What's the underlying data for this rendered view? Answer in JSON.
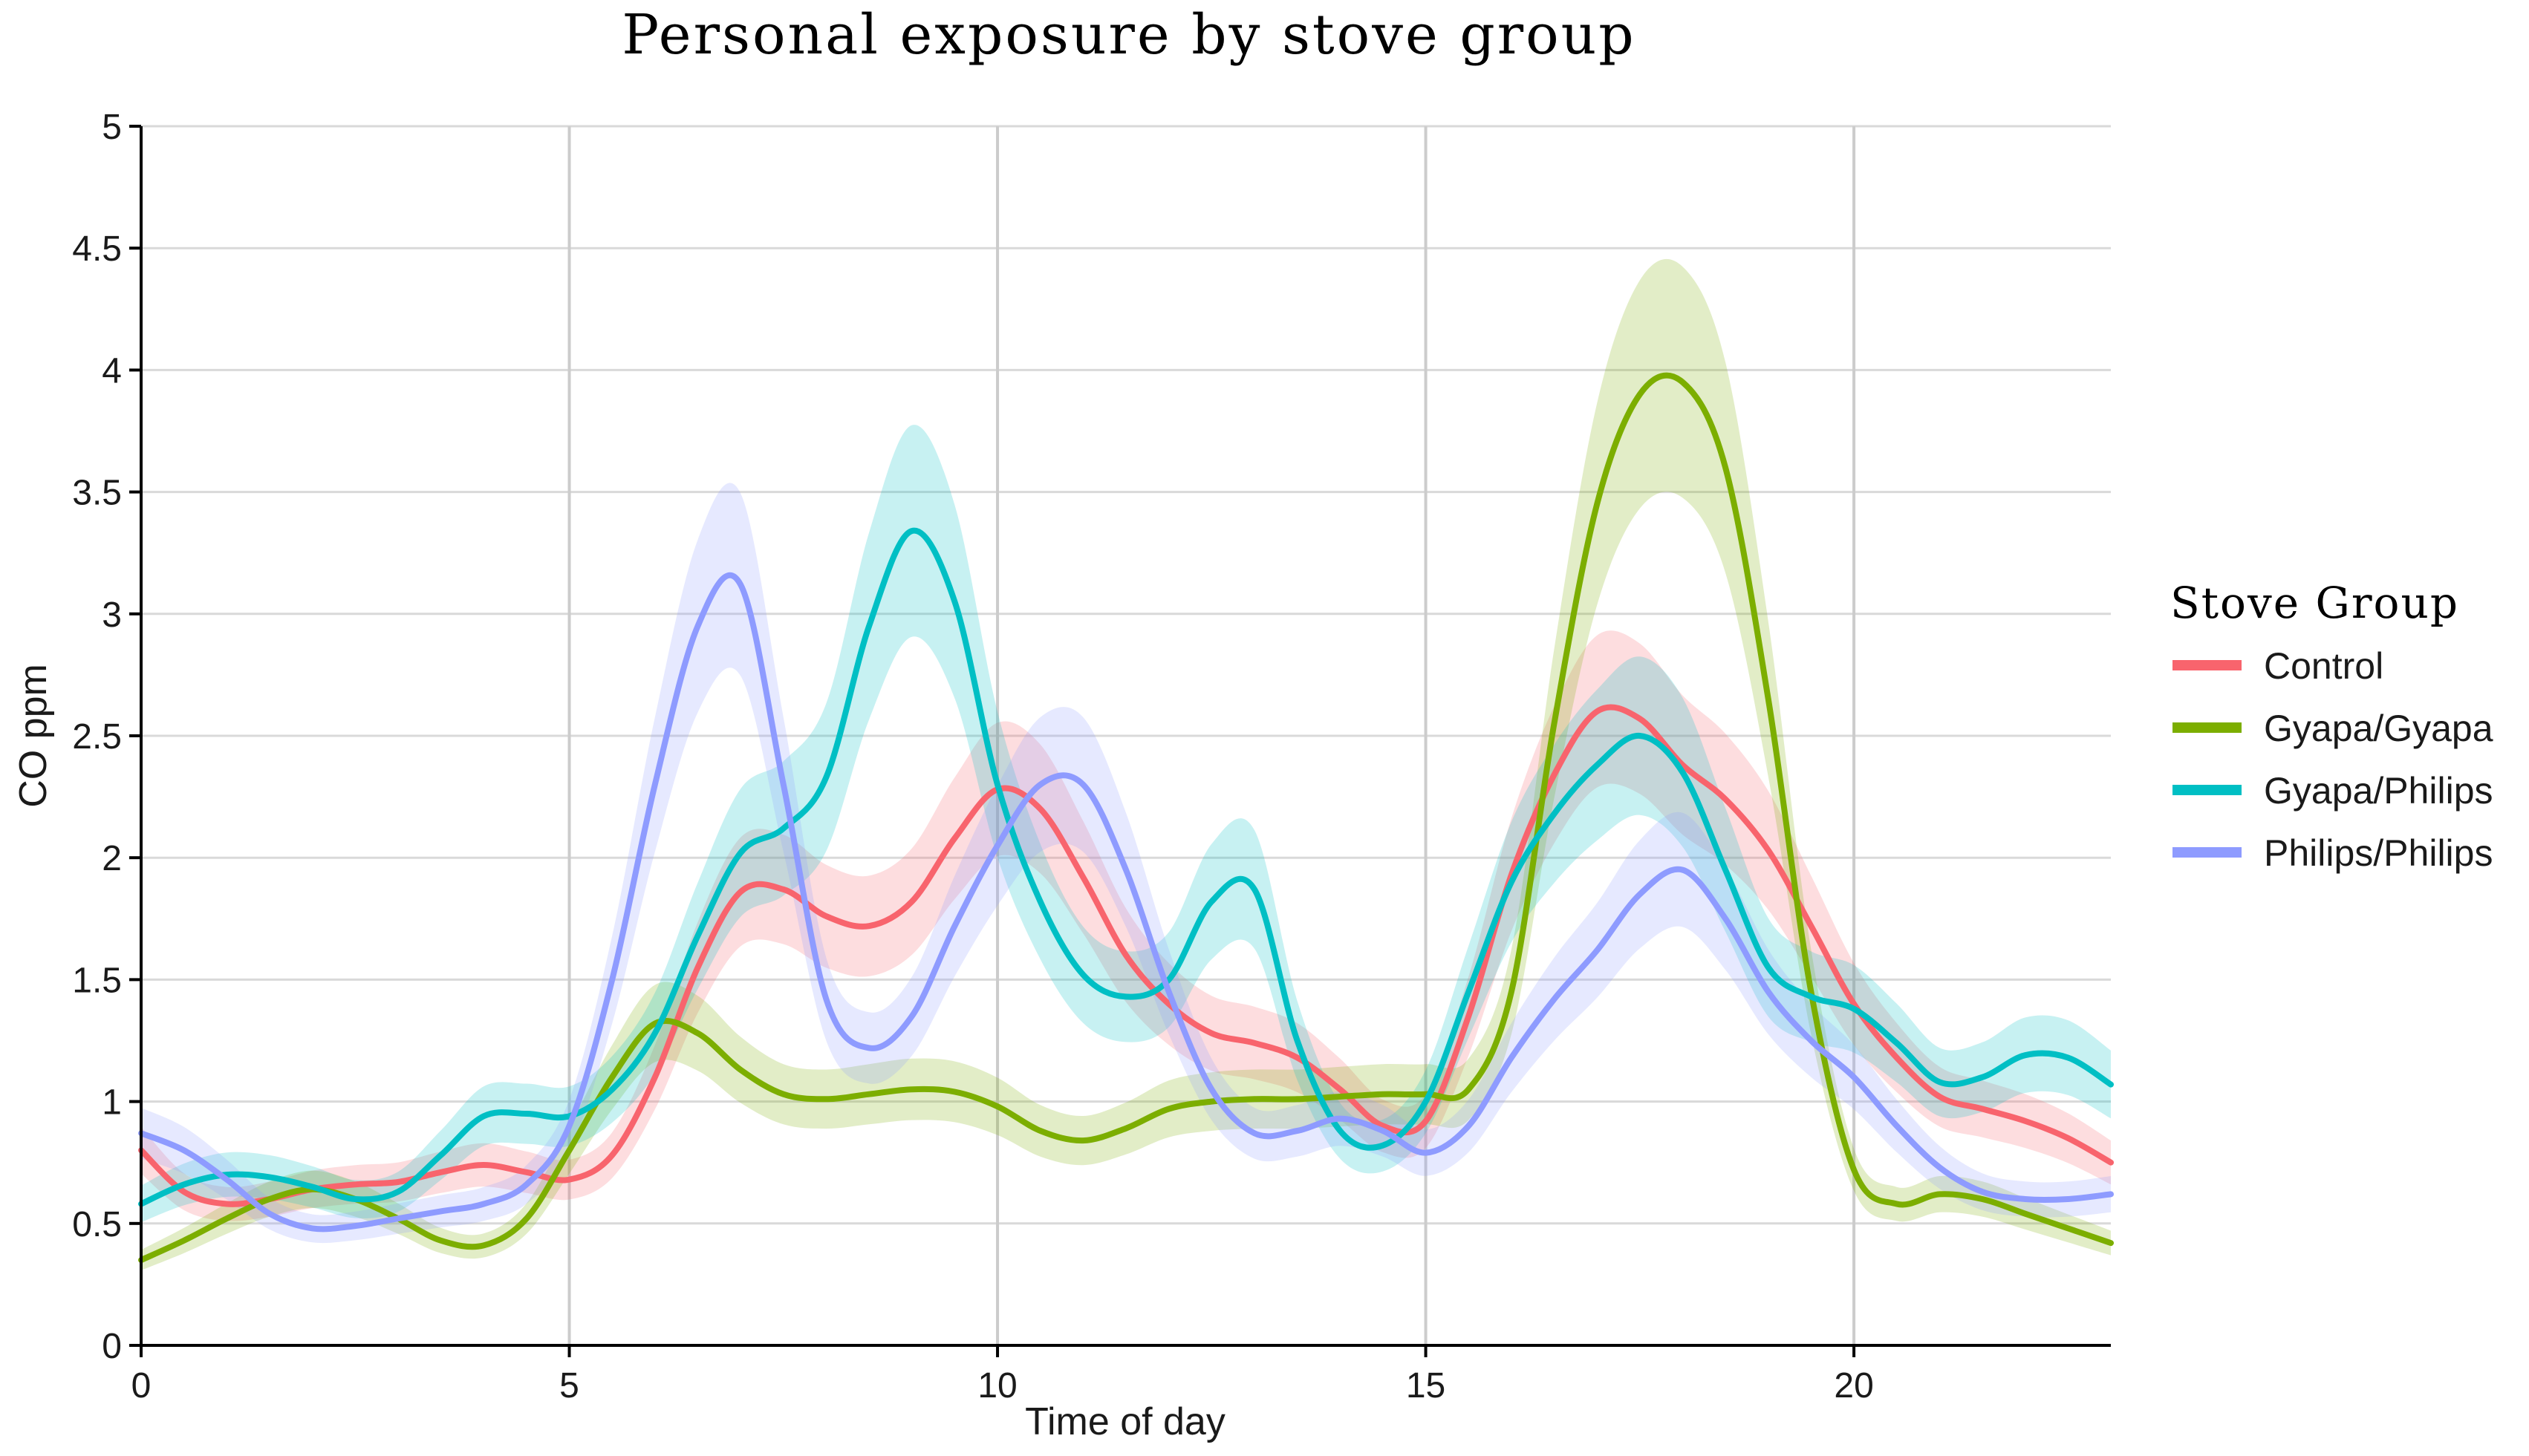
{
  "chart_data": {
    "type": "line",
    "title": "Personal exposure by stove group",
    "xlabel": "Time of day",
    "ylabel": "CO ppm",
    "xlim": [
      0,
      23
    ],
    "ylim": [
      0,
      5
    ],
    "xticks": [
      0,
      5,
      10,
      15,
      20
    ],
    "yticks": [
      0,
      0.5,
      1,
      1.5,
      2,
      2.5,
      3,
      3.5,
      4,
      4.5,
      5
    ],
    "ytick_labels": [
      "0",
      "0.5",
      "1",
      "1.5",
      "2",
      "2.5",
      "3",
      "3.5",
      "4",
      "4.5",
      "5"
    ],
    "grid": true,
    "legend": {
      "title": "Stove Group",
      "placement": "right"
    },
    "series": [
      {
        "name": "Control",
        "color": "#F8646D",
        "x": [
          0,
          0.5,
          1,
          1.5,
          2,
          2.5,
          3,
          3.5,
          4,
          4.5,
          5,
          5.5,
          6,
          6.5,
          7,
          7.5,
          8,
          8.5,
          9,
          9.5,
          10,
          10.5,
          11,
          11.5,
          12,
          12.5,
          13,
          13.5,
          14,
          14.5,
          15,
          15.5,
          16,
          16.5,
          17,
          17.5,
          18,
          18.5,
          19,
          19.5,
          20,
          20.5,
          21,
          21.5,
          22,
          22.5,
          23
        ],
        "y": [
          0.8,
          0.63,
          0.58,
          0.6,
          0.64,
          0.66,
          0.67,
          0.71,
          0.74,
          0.71,
          0.68,
          0.78,
          1.1,
          1.55,
          1.86,
          1.87,
          1.76,
          1.72,
          1.82,
          2.08,
          2.28,
          2.2,
          1.92,
          1.6,
          1.4,
          1.28,
          1.24,
          1.18,
          1.05,
          0.9,
          0.92,
          1.35,
          1.93,
          2.34,
          2.6,
          2.57,
          2.38,
          2.24,
          2.03,
          1.72,
          1.4,
          1.18,
          1.02,
          0.97,
          0.92,
          0.85,
          0.75
        ],
        "ci": 0.12
      },
      {
        "name": "Gyapa/Gyapa",
        "color": "#7CAE00",
        "x": [
          0,
          0.5,
          1,
          1.5,
          2,
          2.5,
          3,
          3.5,
          4,
          4.5,
          5,
          5.5,
          6,
          6.5,
          7,
          7.5,
          8,
          8.5,
          9,
          9.5,
          10,
          10.5,
          11,
          11.5,
          12,
          12.5,
          13,
          13.5,
          14,
          14.5,
          15,
          15.5,
          16,
          16.5,
          17,
          17.5,
          18,
          18.5,
          19,
          19.5,
          20,
          20.5,
          21,
          21.5,
          22,
          22.5,
          23
        ],
        "y": [
          0.35,
          0.43,
          0.52,
          0.6,
          0.64,
          0.6,
          0.52,
          0.43,
          0.41,
          0.52,
          0.8,
          1.1,
          1.32,
          1.28,
          1.13,
          1.03,
          1.01,
          1.03,
          1.05,
          1.04,
          0.98,
          0.88,
          0.84,
          0.89,
          0.97,
          1.0,
          1.01,
          1.01,
          1.02,
          1.03,
          1.03,
          1.05,
          1.45,
          2.55,
          3.45,
          3.9,
          3.95,
          3.6,
          2.65,
          1.45,
          0.72,
          0.58,
          0.62,
          0.6,
          0.54,
          0.48,
          0.42
        ],
        "ci": 0.12
      },
      {
        "name": "Gyapa/Philips",
        "color": "#00BFC4",
        "x": [
          0,
          0.5,
          1,
          1.5,
          2,
          2.5,
          3,
          3.5,
          4,
          4.5,
          5,
          5.5,
          6,
          6.5,
          7,
          7.5,
          8,
          8.5,
          9,
          9.5,
          10,
          10.5,
          11,
          11.5,
          12,
          12.5,
          13,
          13.5,
          14,
          14.5,
          15,
          15.5,
          16,
          16.5,
          17,
          17.5,
          18,
          18.5,
          19,
          19.5,
          20,
          20.5,
          21,
          21.5,
          22,
          22.5,
          23
        ],
        "y": [
          0.58,
          0.66,
          0.7,
          0.69,
          0.65,
          0.6,
          0.63,
          0.78,
          0.94,
          0.95,
          0.94,
          1.05,
          1.28,
          1.68,
          2.02,
          2.12,
          2.33,
          2.95,
          3.34,
          3.05,
          2.3,
          1.82,
          1.52,
          1.43,
          1.5,
          1.82,
          1.87,
          1.25,
          0.88,
          0.82,
          1.0,
          1.45,
          1.9,
          2.18,
          2.38,
          2.5,
          2.35,
          1.95,
          1.55,
          1.43,
          1.38,
          1.24,
          1.08,
          1.1,
          1.19,
          1.18,
          1.07
        ],
        "ci": 0.13
      },
      {
        "name": "Philips/Philips",
        "color": "#8E9BFF",
        "x": [
          0,
          0.5,
          1,
          1.5,
          2,
          2.5,
          3,
          3.5,
          4,
          4.5,
          5,
          5.5,
          6,
          6.5,
          7,
          7.5,
          8,
          8.5,
          9,
          9.5,
          10,
          10.5,
          11,
          11.5,
          12,
          12.5,
          13,
          13.5,
          14,
          14.5,
          15,
          15.5,
          16,
          16.5,
          17,
          17.5,
          18,
          18.5,
          19,
          19.5,
          20,
          20.5,
          21,
          21.5,
          22,
          22.5,
          23
        ],
        "y": [
          0.87,
          0.8,
          0.68,
          0.54,
          0.48,
          0.49,
          0.52,
          0.55,
          0.58,
          0.66,
          0.9,
          1.5,
          2.3,
          2.95,
          3.12,
          2.3,
          1.42,
          1.22,
          1.35,
          1.72,
          2.05,
          2.3,
          2.3,
          1.95,
          1.45,
          1.05,
          0.87,
          0.88,
          0.93,
          0.88,
          0.79,
          0.9,
          1.18,
          1.42,
          1.62,
          1.85,
          1.95,
          1.75,
          1.45,
          1.25,
          1.1,
          0.9,
          0.73,
          0.63,
          0.6,
          0.6,
          0.62
        ],
        "ci": 0.12
      }
    ]
  }
}
